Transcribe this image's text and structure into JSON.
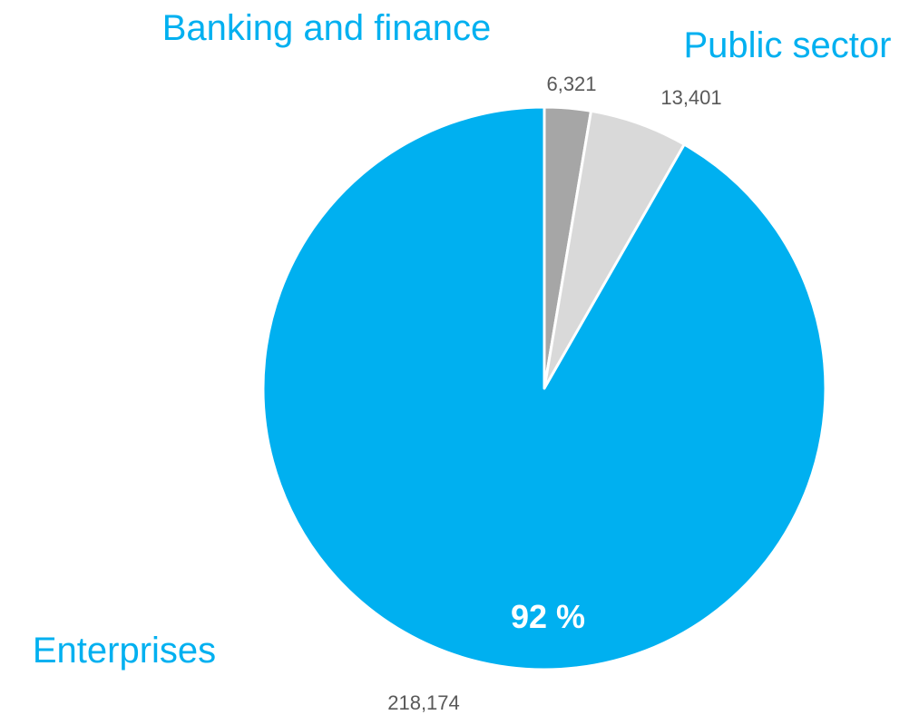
{
  "chart_data": {
    "type": "pie",
    "title": "",
    "slices": [
      {
        "name": "Banking and finance",
        "value": 6321,
        "value_label": "6,321",
        "color": "#a6a6a6"
      },
      {
        "name": "Public sector",
        "value": 13401,
        "value_label": "13,401",
        "color": "#d9d9d9"
      },
      {
        "name": "Enterprises",
        "value": 218174,
        "value_label": "218,174",
        "percent_label": "92 %",
        "color": "#00b0f0"
      }
    ],
    "start_angle": "12 o'clock",
    "direction": "clockwise",
    "slice_border_color": "#ffffff"
  }
}
